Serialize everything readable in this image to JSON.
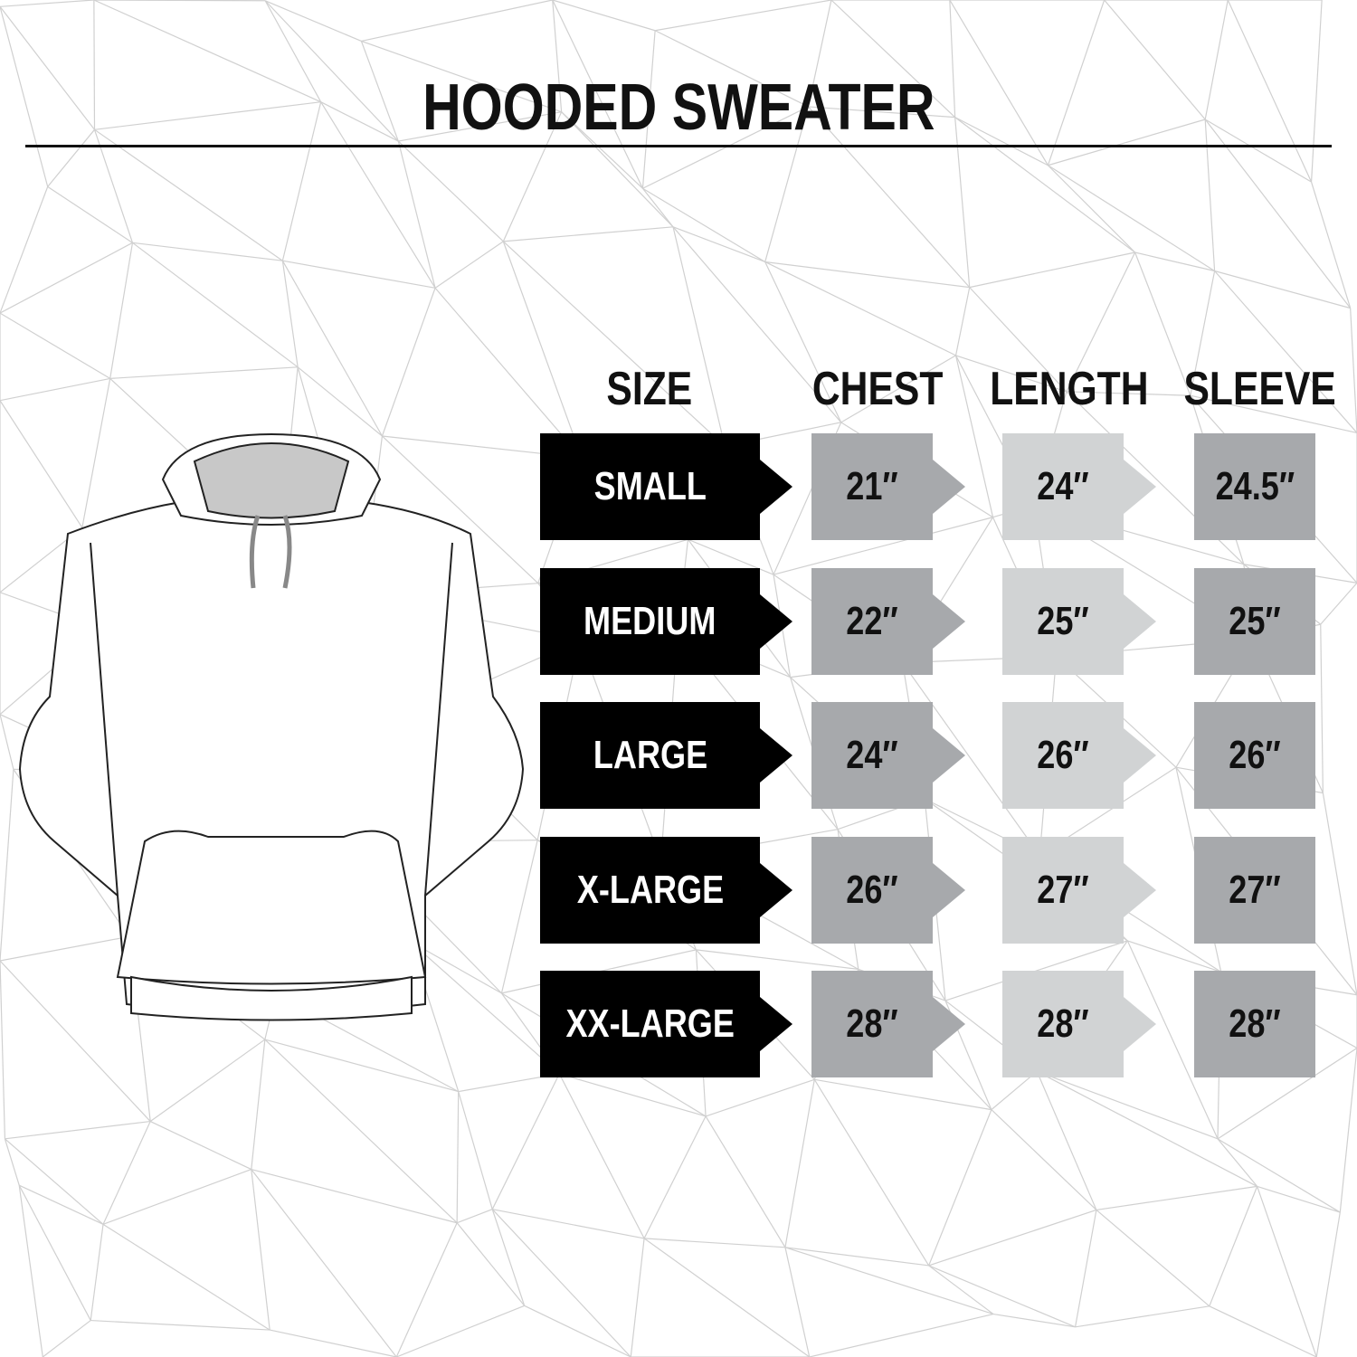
{
  "title": "HOODED SWEATER",
  "headers": {
    "size": "SIZE",
    "chest": "CHEST",
    "length": "LENGTH",
    "sleeve": "SLEEVE"
  },
  "rows": [
    {
      "size": "SMALL",
      "chest": "21″",
      "length": "24″",
      "sleeve": "24.5″"
    },
    {
      "size": "MEDIUM",
      "chest": "22″",
      "length": "25″",
      "sleeve": "25″"
    },
    {
      "size": "LARGE",
      "chest": "24″",
      "length": "26″",
      "sleeve": "26″"
    },
    {
      "size": "X-LARGE",
      "chest": "26″",
      "length": "27″",
      "sleeve": "27″"
    },
    {
      "size": "XX-LARGE",
      "chest": "28″",
      "length": "28″",
      "sleeve": "28″"
    }
  ],
  "colors": {
    "size": "#000000",
    "chest": "#a7a9ac",
    "length": "#d1d3d4",
    "sleeve": "#a7a9ac"
  }
}
